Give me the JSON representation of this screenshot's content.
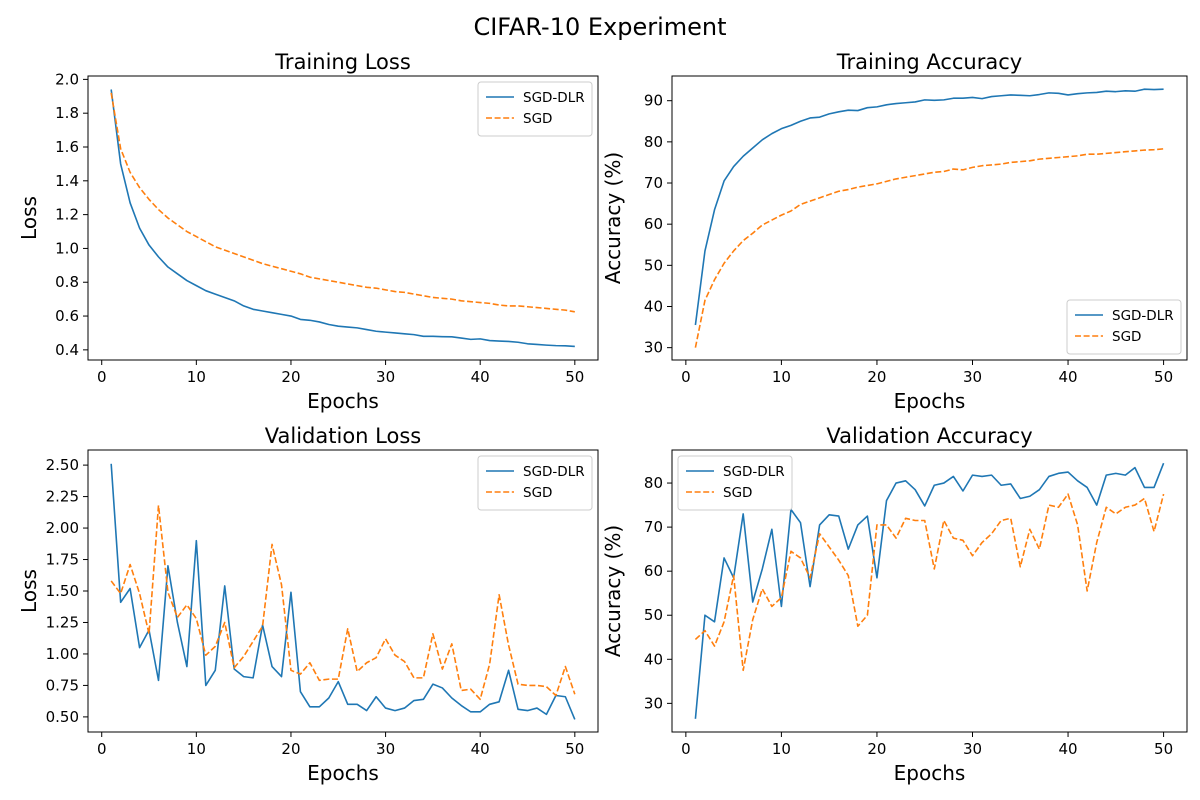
{
  "figure": {
    "title": "CIFAR-10 Experiment"
  },
  "colors": {
    "SGD-DLR": "#1f77b4",
    "SGD": "#ff7f0e"
  },
  "chart_data": [
    {
      "type": "line",
      "title": "Training Loss",
      "xlabel": "Epochs",
      "ylabel": "Loss",
      "legend": "top-right",
      "grid": false,
      "xlim": [
        -1.45,
        52.45
      ],
      "ylim": [
        0.34,
        2.02
      ],
      "xticks": [
        0,
        10,
        20,
        30,
        40,
        50
      ],
      "yticks": [
        0.4,
        0.6,
        0.8,
        1.0,
        1.2,
        1.4,
        1.6,
        1.8,
        2.0
      ],
      "yticklabels": [
        "0.4",
        "0.6",
        "0.8",
        "1.0",
        "1.2",
        "1.4",
        "1.6",
        "1.8",
        "2.0"
      ],
      "x": [
        1,
        2,
        3,
        4,
        5,
        6,
        7,
        8,
        9,
        10,
        11,
        12,
        13,
        14,
        15,
        16,
        17,
        18,
        19,
        20,
        21,
        22,
        23,
        24,
        25,
        26,
        27,
        28,
        29,
        30,
        31,
        32,
        33,
        34,
        35,
        36,
        37,
        38,
        39,
        40,
        41,
        42,
        43,
        44,
        45,
        46,
        47,
        48,
        49,
        50
      ],
      "series": [
        {
          "name": "SGD-DLR",
          "color": "#1f77b4",
          "dash": "solid",
          "values": [
            1.94,
            1.5,
            1.27,
            1.12,
            1.02,
            0.95,
            0.89,
            0.85,
            0.81,
            0.78,
            0.75,
            0.73,
            0.71,
            0.69,
            0.66,
            0.64,
            0.63,
            0.62,
            0.61,
            0.6,
            0.58,
            0.575,
            0.565,
            0.55,
            0.54,
            0.535,
            0.53,
            0.52,
            0.51,
            0.505,
            0.5,
            0.495,
            0.49,
            0.48,
            0.48,
            0.478,
            0.477,
            0.47,
            0.462,
            0.465,
            0.455,
            0.452,
            0.45,
            0.445,
            0.436,
            0.432,
            0.428,
            0.425,
            0.424,
            0.42
          ]
        },
        {
          "name": "SGD",
          "color": "#ff7f0e",
          "dash": "dashed",
          "values": [
            1.92,
            1.59,
            1.45,
            1.36,
            1.29,
            1.23,
            1.18,
            1.14,
            1.1,
            1.07,
            1.04,
            1.01,
            0.99,
            0.97,
            0.95,
            0.93,
            0.91,
            0.895,
            0.88,
            0.865,
            0.85,
            0.83,
            0.82,
            0.81,
            0.8,
            0.79,
            0.78,
            0.77,
            0.765,
            0.755,
            0.745,
            0.74,
            0.73,
            0.72,
            0.71,
            0.705,
            0.7,
            0.69,
            0.685,
            0.68,
            0.675,
            0.665,
            0.66,
            0.66,
            0.655,
            0.65,
            0.645,
            0.64,
            0.635,
            0.625
          ]
        }
      ]
    },
    {
      "type": "line",
      "title": "Training Accuracy",
      "xlabel": "Epochs",
      "ylabel": "Accuracy (%)",
      "legend": "bottom-right",
      "grid": false,
      "xlim": [
        -1.45,
        52.45
      ],
      "ylim": [
        27.0,
        96.0
      ],
      "xticks": [
        0,
        10,
        20,
        30,
        40,
        50
      ],
      "yticks": [
        30,
        40,
        50,
        60,
        70,
        80,
        90
      ],
      "yticklabels": [
        "30",
        "40",
        "50",
        "60",
        "70",
        "80",
        "90"
      ],
      "x": [
        1,
        2,
        3,
        4,
        5,
        6,
        7,
        8,
        9,
        10,
        11,
        12,
        13,
        14,
        15,
        16,
        17,
        18,
        19,
        20,
        21,
        22,
        23,
        24,
        25,
        26,
        27,
        28,
        29,
        30,
        31,
        32,
        33,
        34,
        35,
        36,
        37,
        38,
        39,
        40,
        41,
        42,
        43,
        44,
        45,
        46,
        47,
        48,
        49,
        50
      ],
      "series": [
        {
          "name": "SGD-DLR",
          "color": "#1f77b4",
          "dash": "solid",
          "values": [
            35.5,
            53.5,
            63.5,
            70.5,
            74.0,
            76.5,
            78.5,
            80.5,
            82.0,
            83.2,
            84.0,
            85.0,
            85.8,
            86.0,
            86.8,
            87.3,
            87.7,
            87.6,
            88.3,
            88.5,
            89.0,
            89.3,
            89.5,
            89.7,
            90.2,
            90.1,
            90.2,
            90.6,
            90.6,
            90.8,
            90.5,
            91.0,
            91.2,
            91.4,
            91.3,
            91.2,
            91.5,
            91.9,
            91.8,
            91.4,
            91.7,
            91.9,
            92.0,
            92.3,
            92.2,
            92.4,
            92.3,
            92.8,
            92.7,
            92.8
          ]
        },
        {
          "name": "SGD",
          "color": "#ff7f0e",
          "dash": "dashed",
          "values": [
            30.0,
            41.5,
            46.5,
            50.5,
            53.5,
            56.0,
            57.8,
            59.8,
            61.0,
            62.2,
            63.2,
            64.8,
            65.6,
            66.4,
            67.2,
            68.0,
            68.4,
            69.0,
            69.4,
            69.8,
            70.4,
            71.0,
            71.4,
            71.8,
            72.2,
            72.6,
            72.8,
            73.4,
            73.2,
            73.8,
            74.2,
            74.4,
            74.6,
            75.0,
            75.2,
            75.4,
            75.8,
            76.0,
            76.2,
            76.4,
            76.6,
            77.0,
            77.0,
            77.2,
            77.4,
            77.6,
            77.8,
            78.0,
            78.1,
            78.3
          ]
        }
      ]
    },
    {
      "type": "line",
      "title": "Validation Loss",
      "xlabel": "Epochs",
      "ylabel": "Loss",
      "legend": "top-right",
      "grid": false,
      "xlim": [
        -1.45,
        52.45
      ],
      "ylim": [
        0.38,
        2.62
      ],
      "xticks": [
        0,
        10,
        20,
        30,
        40,
        50
      ],
      "yticks": [
        0.5,
        0.75,
        1.0,
        1.25,
        1.5,
        1.75,
        2.0,
        2.25,
        2.5
      ],
      "yticklabels": [
        "0.50",
        "0.75",
        "1.00",
        "1.25",
        "1.50",
        "1.75",
        "2.00",
        "2.25",
        "2.50"
      ],
      "x": [
        1,
        2,
        3,
        4,
        5,
        6,
        7,
        8,
        9,
        10,
        11,
        12,
        13,
        14,
        15,
        16,
        17,
        18,
        19,
        20,
        21,
        22,
        23,
        24,
        25,
        26,
        27,
        28,
        29,
        30,
        31,
        32,
        33,
        34,
        35,
        36,
        37,
        38,
        39,
        40,
        41,
        42,
        43,
        44,
        45,
        46,
        47,
        48,
        49,
        50
      ],
      "series": [
        {
          "name": "SGD-DLR",
          "color": "#1f77b4",
          "dash": "solid",
          "values": [
            2.51,
            1.41,
            1.52,
            1.05,
            1.19,
            0.79,
            1.7,
            1.25,
            0.9,
            1.9,
            0.75,
            0.87,
            1.54,
            0.88,
            0.82,
            0.81,
            1.23,
            0.9,
            0.82,
            1.49,
            0.7,
            0.58,
            0.58,
            0.65,
            0.78,
            0.6,
            0.6,
            0.55,
            0.66,
            0.57,
            0.55,
            0.57,
            0.63,
            0.64,
            0.76,
            0.73,
            0.65,
            0.59,
            0.54,
            0.54,
            0.6,
            0.62,
            0.87,
            0.56,
            0.55,
            0.57,
            0.52,
            0.67,
            0.66,
            0.48
          ]
        },
        {
          "name": "SGD",
          "color": "#ff7f0e",
          "dash": "dashed",
          "values": [
            1.58,
            1.48,
            1.71,
            1.48,
            1.16,
            2.18,
            1.49,
            1.29,
            1.39,
            1.28,
            0.99,
            1.06,
            1.25,
            0.89,
            0.98,
            1.1,
            1.22,
            1.87,
            1.55,
            0.87,
            0.84,
            0.93,
            0.79,
            0.8,
            0.8,
            1.2,
            0.86,
            0.93,
            0.97,
            1.12,
            0.99,
            0.94,
            0.81,
            0.81,
            1.16,
            0.88,
            1.08,
            0.71,
            0.72,
            0.64,
            0.92,
            1.47,
            1.07,
            0.76,
            0.75,
            0.75,
            0.74,
            0.67,
            0.9,
            0.68
          ]
        }
      ]
    },
    {
      "type": "line",
      "title": "Validation Accuracy",
      "xlabel": "Epochs",
      "ylabel": "Accuracy (%)",
      "legend": "top-left",
      "grid": false,
      "xlim": [
        -1.45,
        52.45
      ],
      "ylim": [
        23.5,
        87.5
      ],
      "xticks": [
        0,
        10,
        20,
        30,
        40,
        50
      ],
      "yticks": [
        30,
        40,
        50,
        60,
        70,
        80
      ],
      "yticklabels": [
        "30",
        "40",
        "50",
        "60",
        "70",
        "80"
      ],
      "x": [
        1,
        2,
        3,
        4,
        5,
        6,
        7,
        8,
        9,
        10,
        11,
        12,
        13,
        14,
        15,
        16,
        17,
        18,
        19,
        20,
        21,
        22,
        23,
        24,
        25,
        26,
        27,
        28,
        29,
        30,
        31,
        32,
        33,
        34,
        35,
        36,
        37,
        38,
        39,
        40,
        41,
        42,
        43,
        44,
        45,
        46,
        47,
        48,
        49,
        50
      ],
      "series": [
        {
          "name": "SGD-DLR",
          "color": "#1f77b4",
          "dash": "solid",
          "values": [
            26.5,
            50.0,
            48.5,
            63.0,
            58.5,
            73.0,
            53.0,
            60.5,
            69.5,
            52.0,
            74.0,
            71.0,
            56.5,
            70.5,
            72.8,
            72.5,
            65.0,
            70.5,
            72.5,
            58.5,
            76.0,
            80.0,
            80.5,
            78.5,
            74.8,
            79.5,
            80.0,
            81.5,
            78.2,
            81.8,
            81.5,
            81.8,
            79.5,
            79.8,
            76.5,
            77.0,
            78.5,
            81.5,
            82.2,
            82.5,
            80.5,
            79.0,
            75.0,
            81.8,
            82.2,
            81.8,
            83.5,
            79.0,
            79.0,
            84.5
          ]
        },
        {
          "name": "SGD",
          "color": "#ff7f0e",
          "dash": "dashed",
          "values": [
            44.5,
            46.5,
            43.0,
            48.5,
            59.0,
            37.5,
            49.0,
            56.0,
            52.0,
            54.0,
            64.5,
            63.0,
            58.5,
            68.5,
            65.5,
            62.5,
            59.0,
            47.5,
            50.0,
            70.5,
            70.5,
            67.5,
            72.0,
            71.5,
            71.5,
            60.5,
            71.5,
            67.5,
            67.0,
            63.5,
            66.5,
            68.5,
            71.5,
            72.0,
            61.0,
            69.5,
            65.0,
            75.0,
            74.5,
            77.5,
            70.5,
            55.5,
            66.5,
            74.5,
            73.0,
            74.5,
            75.0,
            76.5,
            69.0,
            77.5
          ]
        }
      ]
    }
  ]
}
